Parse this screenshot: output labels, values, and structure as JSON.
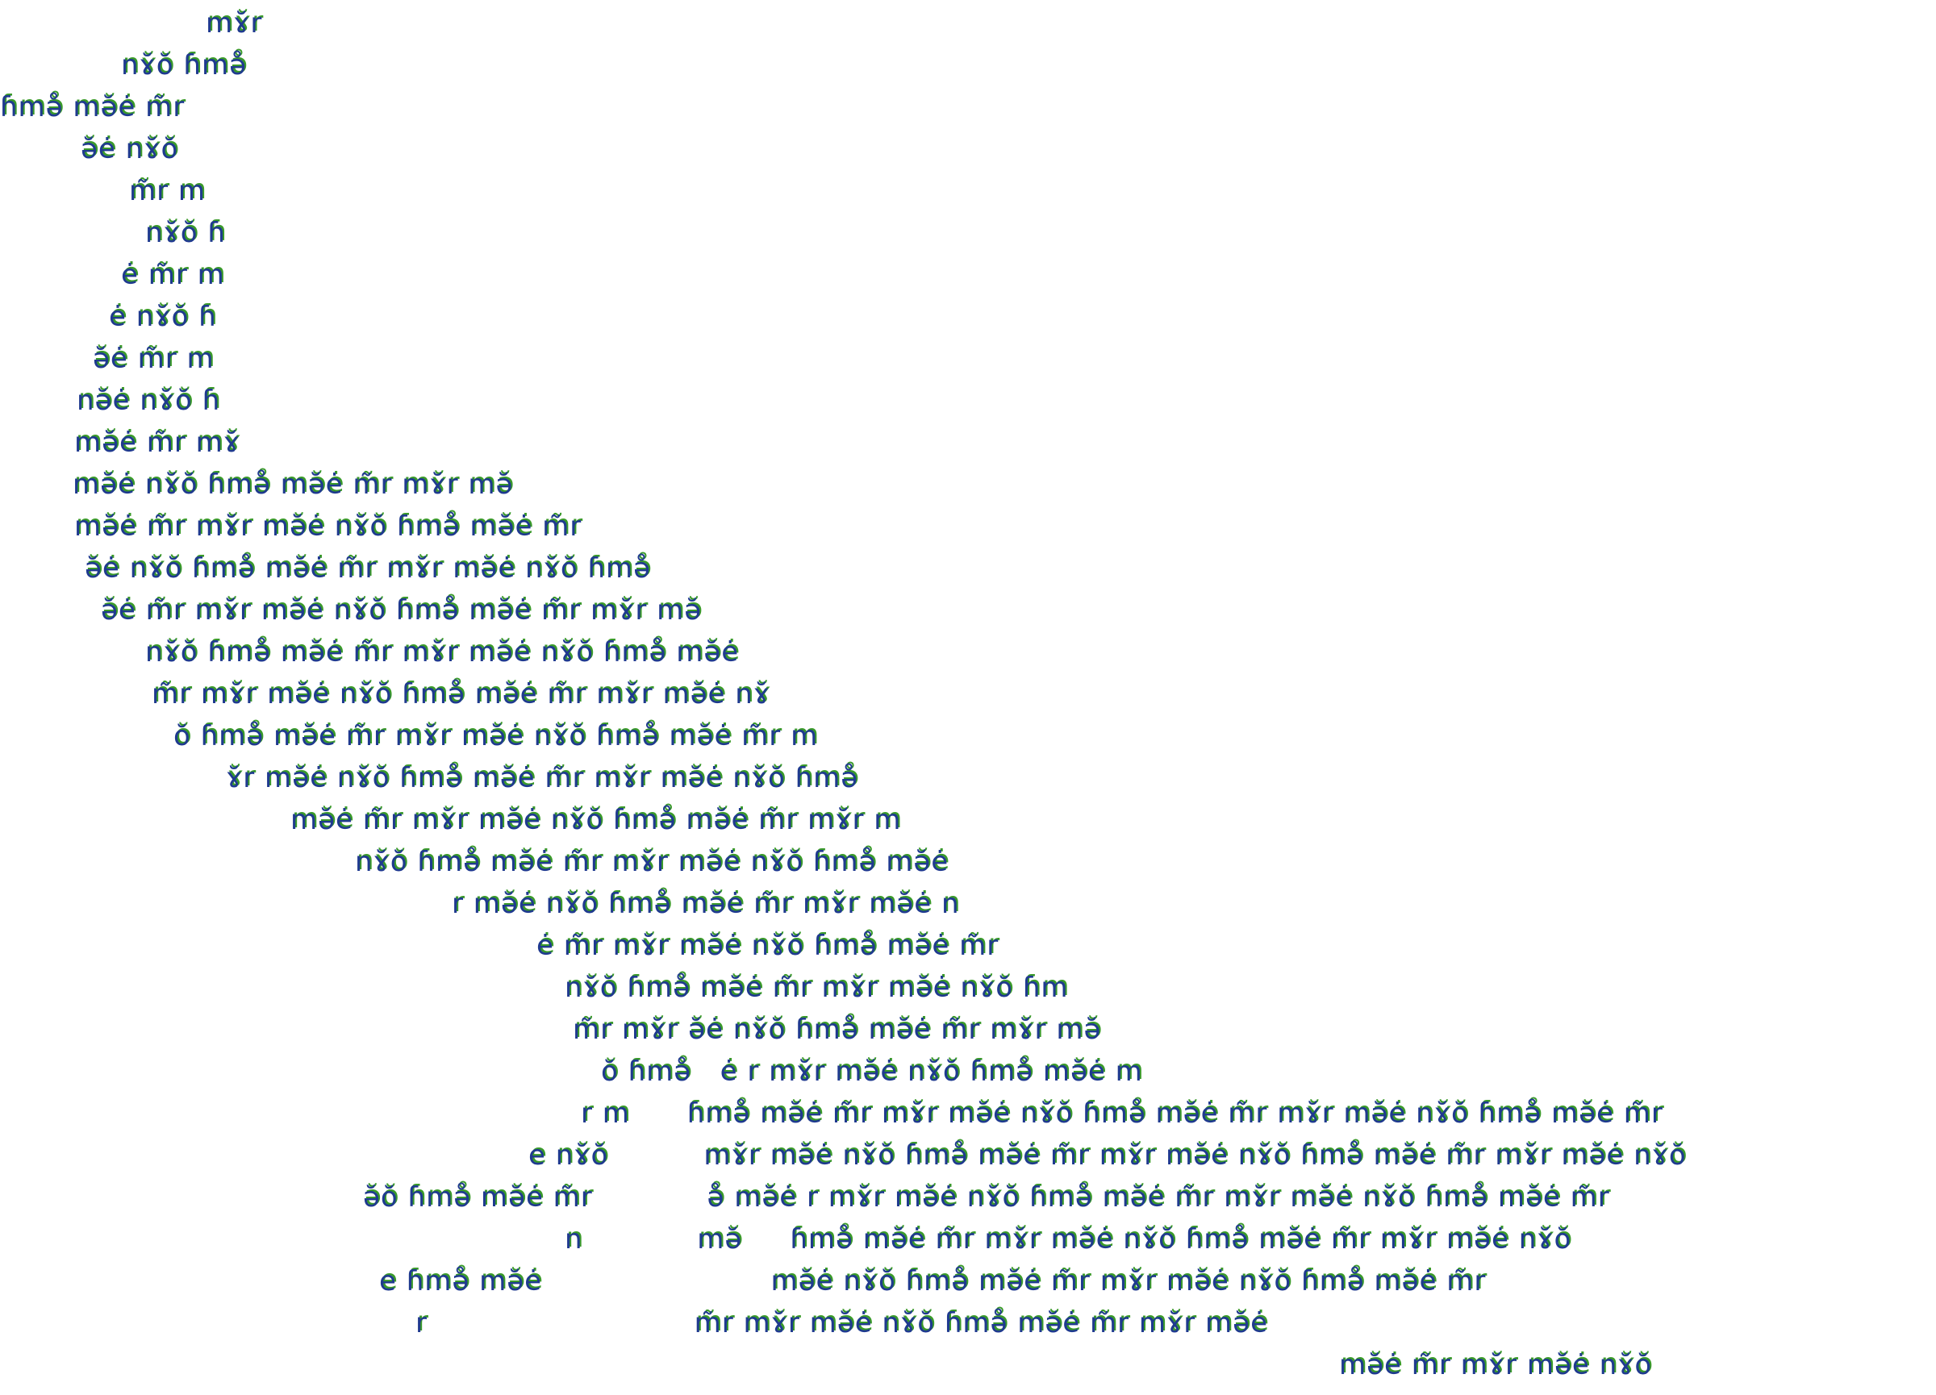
{
  "artwork": {
    "kind": "text-pattern-silhouette",
    "colors": {
      "background": "#ffffff",
      "glyph_primary": "#1f3a8f",
      "glyph_offset": "#3a9a2a"
    },
    "rows": [
      "mɤ̆r",
      "nɤ̆ŏ ɦmə̊",
      "ɦmə̊ mə̆ė m̃r",
      "ə̆ė nɤ̆ŏ",
      "m̃r m",
      "nɤ̆ŏ ɦ",
      "ė m̃r m",
      "ė nɤ̆ŏ ɦ",
      "ə̆ė m̃r m",
      "nə̆ė nɤ̆ŏ ɦ",
      "mə̆ė m̃r mɤ̆",
      "mə̆ė nɤ̆ŏ ɦmə̊ mə̆ė m̃r mɤ̆r mə̆",
      "mə̆ė m̃r mɤ̆r mə̆ė nɤ̆ŏ ɦmə̊ mə̆ė m̃r",
      "ə̆ė nɤ̆ŏ ɦmə̊ mə̆ė m̃r mɤ̆r mə̆ė nɤ̆ŏ ɦmə̊",
      "ə̆ė m̃r mɤ̆r mə̆ė nɤ̆ŏ ɦmə̊ mə̆ė m̃r mɤ̆r mə̆",
      "nɤ̆ŏ ɦmə̊ mə̆ė m̃r mɤ̆r mə̆ė nɤ̆ŏ ɦmə̊ mə̆ė",
      "m̃r mɤ̆r mə̆ė nɤ̆ŏ ɦmə̊ mə̆ė m̃r mɤ̆r mə̆ė nɤ̆",
      "ŏ ɦmə̊ mə̆ė m̃r mɤ̆r mə̆ė nɤ̆ŏ ɦmə̊ mə̆ė m̃r m",
      "ɤ̆r mə̆ė nɤ̆ŏ ɦmə̊ mə̆ė m̃r mɤ̆r mə̆ė nɤ̆ŏ ɦmə̊",
      "mə̆ė m̃r mɤ̆r mə̆ė nɤ̆ŏ ɦmə̊ mə̆ė m̃r mɤ̆r m",
      "nɤ̆ŏ ɦmə̊ mə̆ė m̃r mɤ̆r mə̆ė nɤ̆ŏ ɦmə̊ mə̆ė",
      "r mə̆ė nɤ̆ŏ ɦmə̊ mə̆ė m̃r mɤ̆r mə̆ė n",
      "ė m̃r mɤ̆r mə̆ė nɤ̆ŏ ɦmə̊ mə̆ė m̃r",
      "nɤ̆ŏ ɦmə̊ mə̆ė m̃r mɤ̆r mə̆ė nɤ̆ŏ ɦm",
      "m̃r mɤ̆r ə̆ė nɤ̆ŏ ɦmə̊ mə̆ė m̃r mɤ̆r mə̆",
      "ŏ ɦmə̊   ė r mɤ̆r mə̆ė nɤ̆ŏ ɦmə̊ mə̆ė m",
      "r m      ɦmə̊ mə̆ė m̃r mɤ̆r mə̆ė nɤ̆ŏ ɦmə̊ mə̆ė m̃r mɤ̆r mə̆ė nɤ̆ŏ ɦmə̊ mə̆ė m̃r",
      "e nɤ̆ŏ          mɤ̆r mə̆ė nɤ̆ŏ ɦmə̊ mə̆ė m̃r mɤ̆r mə̆ė nɤ̆ŏ ɦmə̊ mə̆ė m̃r mɤ̆r mə̆ė nɤ̆ŏ",
      "ə̆ŏ ɦmə̊ mə̆ė m̃r            ə̊ mə̆ė r mɤ̆r mə̆ė nɤ̆ŏ ɦmə̊ mə̆ė m̃r mɤ̆r mə̆ė nɤ̆ŏ ɦmə̊ mə̆ė m̃r",
      "n            mə̆     ɦmə̊ mə̆ė m̃r mɤ̆r mə̆ė nɤ̆ŏ ɦmə̊ mə̆ė m̃r mɤ̆r mə̆ė nɤ̆ŏ",
      "e ɦmə̊ mə̆ė                        mə̆ė nɤ̆ŏ ɦmə̊ mə̆ė m̃r mɤ̆r mə̆ė nɤ̆ŏ ɦmə̊ mə̆ė m̃r",
      "r                            m̃r mɤ̆r mə̆ė nɤ̆ŏ ɦmə̊ mə̆ė m̃r mɤ̆r mə̆ė",
      "mə̆ė m̃r mɤ̆r mə̆ė nɤ̆ŏ"
    ]
  }
}
